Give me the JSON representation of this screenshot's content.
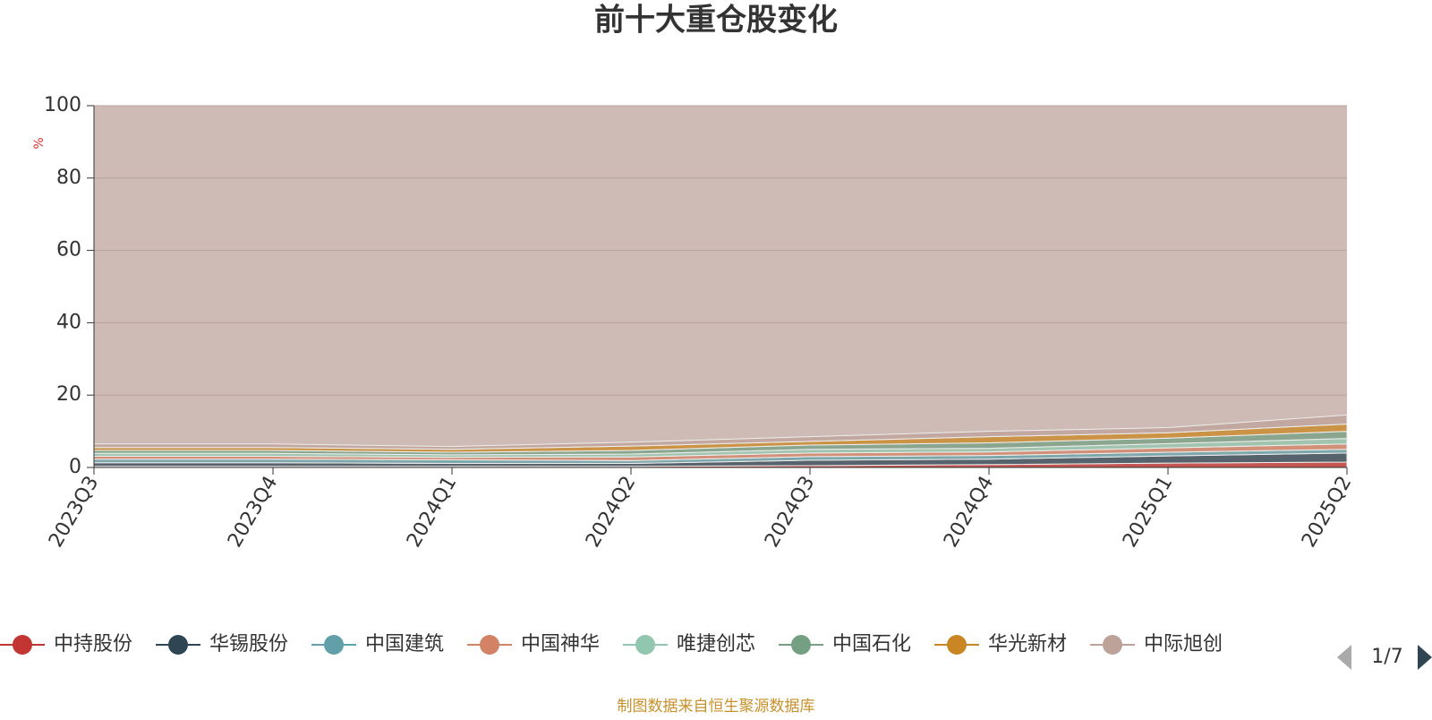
{
  "chart_data": {
    "type": "stacked-area",
    "title": "前十大重仓股变化",
    "y_label": "%",
    "categories": [
      "2023Q3",
      "2023Q4",
      "2024Q1",
      "2024Q2",
      "2024Q3",
      "2024Q4",
      "2025Q1",
      "2025Q2"
    ],
    "ylim": [
      0,
      100
    ],
    "yticks": [
      0,
      20,
      40,
      60,
      80,
      100
    ],
    "grid": true,
    "series": [
      {
        "name": "中持股份",
        "color": "#c23531",
        "values": [
          0.3,
          0.3,
          0.3,
          0.3,
          0.5,
          0.8,
          1.2,
          1.5
        ]
      },
      {
        "name": "华锡股份",
        "color": "#2f4554",
        "values": [
          1,
          1,
          0.8,
          0.8,
          1.5,
          1.5,
          2,
          2.5
        ]
      },
      {
        "name": "中国建筑",
        "color": "#61a0a8",
        "values": [
          1,
          1,
          1,
          0.8,
          1,
          1,
          1,
          1
        ]
      },
      {
        "name": "中国神华",
        "color": "#d48265",
        "values": [
          0.8,
          0.8,
          0.7,
          1,
          1,
          1,
          1.2,
          1.5
        ]
      },
      {
        "name": "唯捷创芯",
        "color": "#91c7ae",
        "values": [
          0.8,
          0.8,
          0.7,
          0.8,
          1,
          1,
          1.2,
          1.5
        ]
      },
      {
        "name": "中国石化",
        "color": "#749f83",
        "values": [
          0.8,
          0.8,
          0.7,
          1,
          1.2,
          1.5,
          1.5,
          2
        ]
      },
      {
        "name": "华光新材",
        "color": "#ca8622",
        "values": [
          0.8,
          0.8,
          0.8,
          1.2,
          1,
          1.7,
          1.5,
          2
        ]
      },
      {
        "name": "中际旭创",
        "color": "#bda29a",
        "values": [
          1,
          1,
          0.8,
          1.1,
          1.3,
          1.5,
          1.4,
          2.5
        ]
      }
    ],
    "legend_page": "1/7",
    "source": "制图数据来自恒生聚源数据库"
  }
}
